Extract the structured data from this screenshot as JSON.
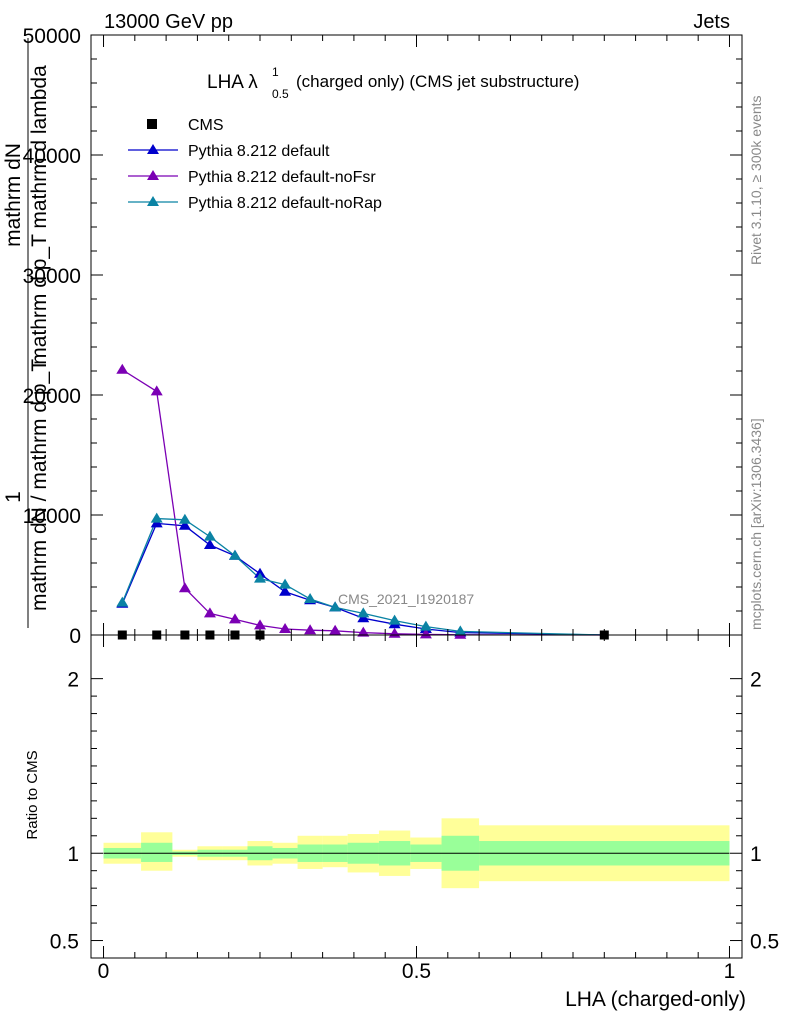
{
  "header": {
    "left": "13000 GeV pp",
    "right": "Jets"
  },
  "side_labels": {
    "rivet": "Rivet 3.1.10, ≥ 300k events",
    "mcplots": "mcplots.cern.ch [arXiv:1306.3436]"
  },
  "colors": {
    "cms": "#000000",
    "default": "#0000cc",
    "noFsr": "#7b00b4",
    "noRap": "#0b83a4",
    "band_inner": "#99ff99",
    "band_outer": "#ffff99"
  },
  "chart_data": [
    {
      "type": "line",
      "title": "LHA λ",
      "title_sup": "1",
      "title_sub": "0.5",
      "title_suffix": " (charged only) (CMS jet substructure)",
      "watermark": "CMS_2021_I1920187",
      "ylabel_numer": "mathrm dN",
      "ylabel_denom": "mathrm d p_T mathrm d lambda",
      "ylabel_prefix_numer": "1",
      "ylabel_prefix_denom": "mathrm dN / mathrm d p_T",
      "xlim": [
        -0.02,
        1.02
      ],
      "ylim": [
        0,
        50000
      ],
      "yticks": [
        0,
        10000,
        20000,
        30000,
        40000,
        50000
      ],
      "ytick_labels": [
        "0",
        "10000",
        "20000",
        "30000",
        "40000",
        "50000"
      ],
      "legend": [
        "CMS",
        "Pythia 8.212 default",
        "Pythia 8.212 default-noFsr",
        "Pythia 8.212 default-noRap"
      ],
      "series": [
        {
          "name": "CMS",
          "marker": "square",
          "x": [
            0.03,
            0.085,
            0.13,
            0.17,
            0.21,
            0.25,
            0.8
          ],
          "y": [
            0,
            0,
            0,
            0,
            0,
            0,
            0
          ]
        },
        {
          "name": "Pythia 8.212 default",
          "marker": "triangle",
          "x": [
            0.03,
            0.085,
            0.13,
            0.17,
            0.21,
            0.25,
            0.29,
            0.33,
            0.37,
            0.415,
            0.465,
            0.515,
            0.57,
            0.8
          ],
          "y": [
            2600,
            9300,
            9100,
            7500,
            6600,
            5100,
            3600,
            2900,
            2300,
            1400,
            900,
            500,
            200,
            0
          ]
        },
        {
          "name": "Pythia 8.212 default-noFsr",
          "marker": "triangle",
          "x": [
            0.03,
            0.085,
            0.13,
            0.17,
            0.21,
            0.25,
            0.29,
            0.33,
            0.37,
            0.415,
            0.465,
            0.515,
            0.57,
            0.8
          ],
          "y": [
            22100,
            20300,
            3900,
            1800,
            1300,
            800,
            500,
            400,
            350,
            200,
            100,
            50,
            20,
            0
          ]
        },
        {
          "name": "Pythia 8.212 default-noRap",
          "marker": "triangle",
          "x": [
            0.03,
            0.085,
            0.13,
            0.17,
            0.21,
            0.25,
            0.29,
            0.33,
            0.37,
            0.415,
            0.465,
            0.515,
            0.57,
            0.8
          ],
          "y": [
            2700,
            9700,
            9600,
            8200,
            6600,
            4700,
            4200,
            3000,
            2300,
            1800,
            1200,
            700,
            300,
            0
          ]
        }
      ]
    },
    {
      "type": "area",
      "ylabel": "Ratio to CMS",
      "xlabel": "LHA (charged-only)",
      "xlim": [
        -0.02,
        1.02
      ],
      "ylim": [
        0.4,
        2.25
      ],
      "xticks": [
        0,
        0.5,
        1
      ],
      "xtick_labels": [
        "0",
        "0.5",
        "1"
      ],
      "yticks": [
        0.5,
        1,
        2
      ],
      "ytick_labels": [
        "0.5",
        "1",
        "2"
      ],
      "reference": 1,
      "bins": [
        {
          "x0": 0.0,
          "x1": 0.06,
          "inner": [
            0.97,
            1.03
          ],
          "outer": [
            0.94,
            1.06
          ]
        },
        {
          "x0": 0.06,
          "x1": 0.11,
          "inner": [
            0.95,
            1.06
          ],
          "outer": [
            0.9,
            1.12
          ]
        },
        {
          "x0": 0.11,
          "x1": 0.15,
          "inner": [
            0.99,
            1.01
          ],
          "outer": [
            0.98,
            1.02
          ]
        },
        {
          "x0": 0.15,
          "x1": 0.19,
          "inner": [
            0.98,
            1.02
          ],
          "outer": [
            0.96,
            1.04
          ]
        },
        {
          "x0": 0.19,
          "x1": 0.23,
          "inner": [
            0.98,
            1.02
          ],
          "outer": [
            0.96,
            1.04
          ]
        },
        {
          "x0": 0.23,
          "x1": 0.27,
          "inner": [
            0.96,
            1.04
          ],
          "outer": [
            0.93,
            1.07
          ]
        },
        {
          "x0": 0.27,
          "x1": 0.31,
          "inner": [
            0.97,
            1.03
          ],
          "outer": [
            0.94,
            1.06
          ]
        },
        {
          "x0": 0.31,
          "x1": 0.35,
          "inner": [
            0.95,
            1.05
          ],
          "outer": [
            0.91,
            1.1
          ]
        },
        {
          "x0": 0.35,
          "x1": 0.39,
          "inner": [
            0.95,
            1.05
          ],
          "outer": [
            0.92,
            1.1
          ]
        },
        {
          "x0": 0.39,
          "x1": 0.44,
          "inner": [
            0.94,
            1.06
          ],
          "outer": [
            0.89,
            1.11
          ]
        },
        {
          "x0": 0.44,
          "x1": 0.49,
          "inner": [
            0.93,
            1.07
          ],
          "outer": [
            0.87,
            1.13
          ]
        },
        {
          "x0": 0.49,
          "x1": 0.54,
          "inner": [
            0.95,
            1.05
          ],
          "outer": [
            0.91,
            1.09
          ]
        },
        {
          "x0": 0.54,
          "x1": 0.6,
          "inner": [
            0.9,
            1.1
          ],
          "outer": [
            0.8,
            1.2
          ]
        },
        {
          "x0": 0.6,
          "x1": 1.0,
          "inner": [
            0.93,
            1.07
          ],
          "outer": [
            0.84,
            1.16
          ]
        }
      ]
    }
  ]
}
